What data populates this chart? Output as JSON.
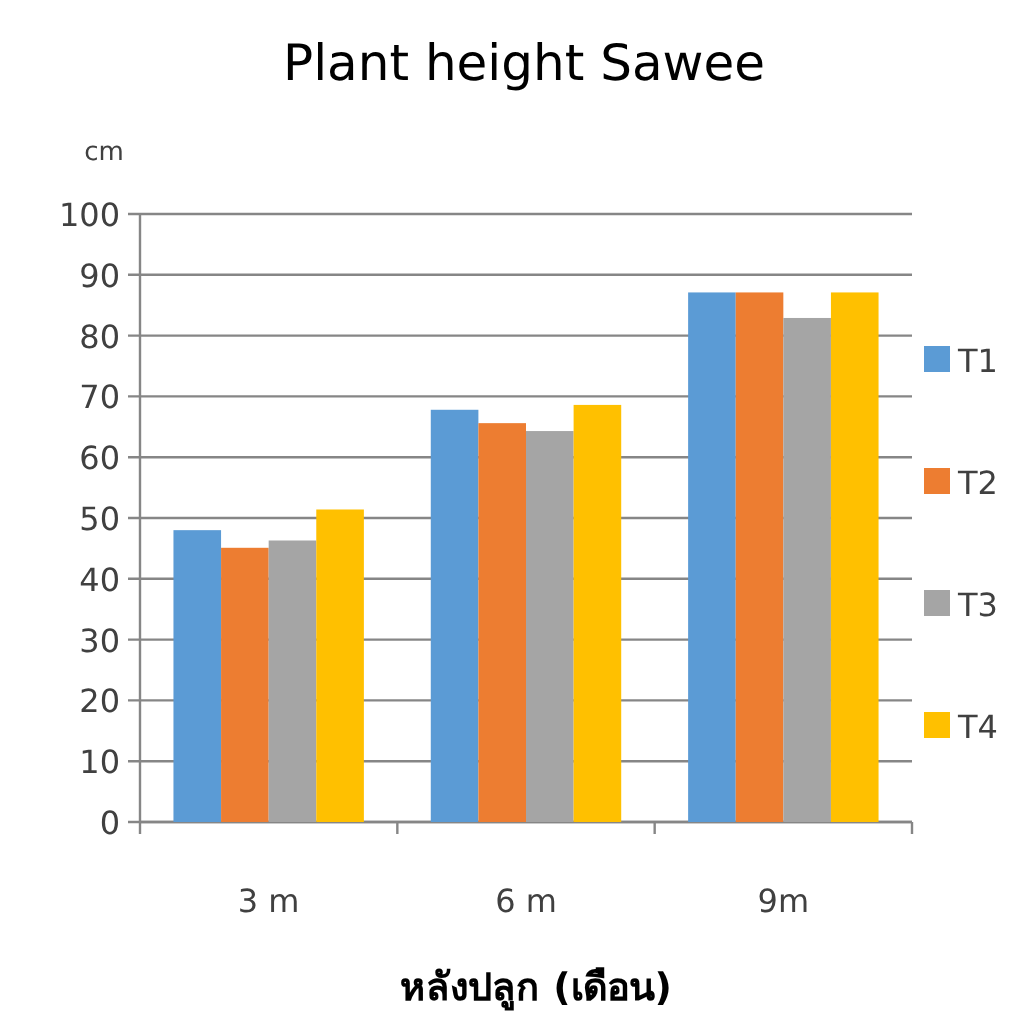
{
  "chart_data": {
    "type": "bar",
    "title": "Plant height Sawee",
    "ylabel": "cm",
    "xlabel": "หลังปลูก (เดือน)",
    "categories": [
      "3 m",
      "6 m",
      "9m"
    ],
    "series": [
      {
        "name": "T1",
        "color": "#5b9bd5",
        "values": [
          48.0,
          67.8,
          87.1
        ]
      },
      {
        "name": "T2",
        "color": "#ed7d31",
        "values": [
          45.1,
          65.6,
          87.1
        ]
      },
      {
        "name": "T3",
        "color": "#a5a5a5",
        "values": [
          46.3,
          64.3,
          82.9
        ]
      },
      {
        "name": "T4",
        "color": "#ffc000",
        "values": [
          51.4,
          68.6,
          87.1
        ]
      }
    ],
    "ylim": [
      0,
      100
    ],
    "yticks": [
      0,
      10,
      20,
      30,
      40,
      50,
      60,
      70,
      80,
      90,
      100
    ],
    "grid": "y",
    "legend": "right"
  }
}
